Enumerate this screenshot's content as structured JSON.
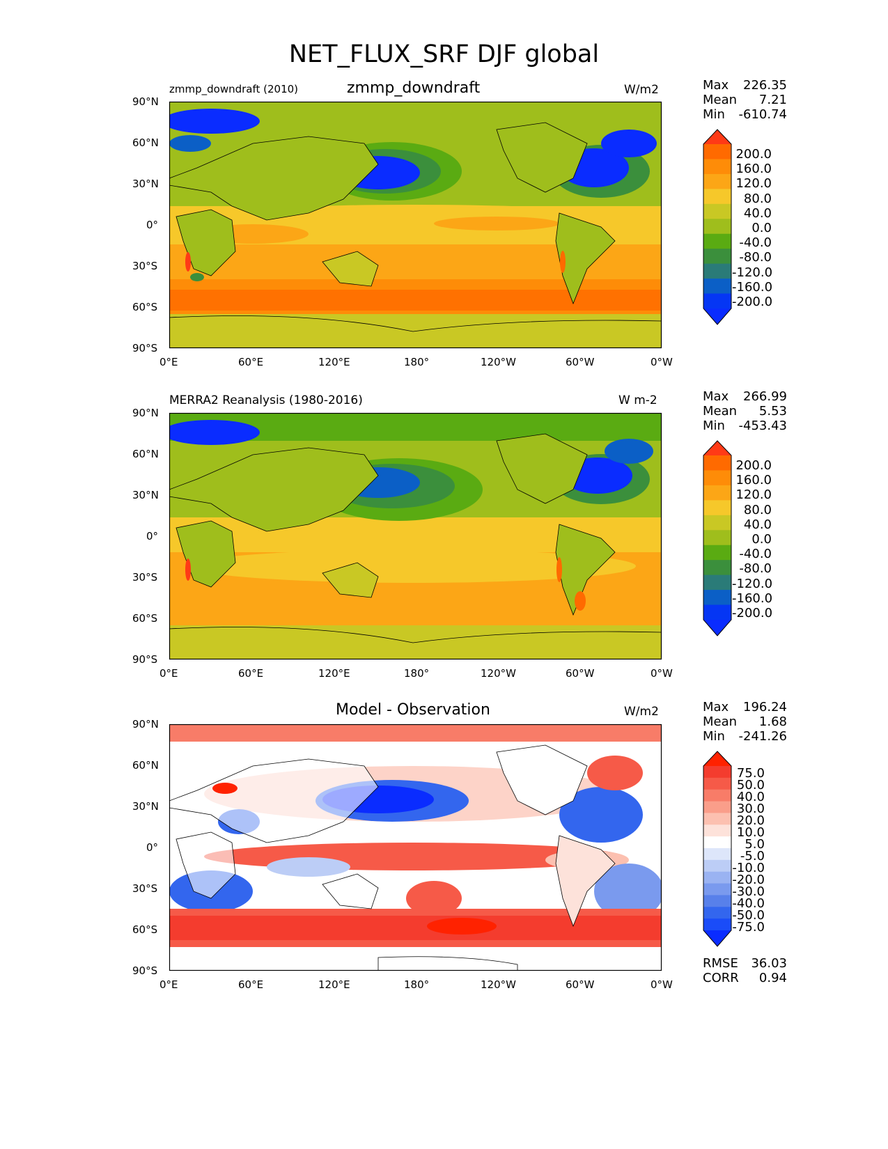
{
  "title": "NET_FLUX_SRF DJF global",
  "panels": [
    {
      "left_label": "zmmp_downdraft (2010)",
      "center_label": "zmmp_downdraft",
      "units": "W/m2",
      "stats": {
        "max_label": "Max",
        "max": "226.35",
        "mean_label": "Mean",
        "mean": "7.21",
        "min_label": "Min",
        "min": "-610.74"
      },
      "colorbar": {
        "labels": [
          "200.0",
          "160.0",
          "120.0",
          "80.0",
          "40.0",
          "0.0",
          "-40.0",
          "-80.0",
          "-120.0",
          "-160.0",
          "-200.0"
        ],
        "colors": [
          "#ff3a16",
          "#ff6a00",
          "#fe8c08",
          "#fca616",
          "#f6c82a",
          "#c9c824",
          "#9fbe1c",
          "#5aab12",
          "#3b8f3c",
          "#2a7b78",
          "#0b5fc6",
          "#0536f4",
          "#0a2cff"
        ]
      }
    },
    {
      "left_label": "MERRA2 Reanalysis (1980-2016)",
      "center_label": "",
      "units": "W m-2",
      "stats": {
        "max_label": "Max",
        "max": "266.99",
        "mean_label": "Mean",
        "mean": "5.53",
        "min_label": "Min",
        "min": "-453.43"
      },
      "colorbar": {
        "labels": [
          "200.0",
          "160.0",
          "120.0",
          "80.0",
          "40.0",
          "0.0",
          "-40.0",
          "-80.0",
          "-120.0",
          "-160.0",
          "-200.0"
        ],
        "colors": [
          "#ff3a16",
          "#ff6a00",
          "#fe8c08",
          "#fca616",
          "#f6c82a",
          "#c9c824",
          "#9fbe1c",
          "#5aab12",
          "#3b8f3c",
          "#2a7b78",
          "#0b5fc6",
          "#0536f4",
          "#0a2cff"
        ]
      }
    },
    {
      "left_label": "",
      "center_label": "Model - Observation",
      "units": "W/m2",
      "stats": {
        "max_label": "Max",
        "max": "196.24",
        "mean_label": "Mean",
        "mean": "1.68",
        "min_label": "Min",
        "min": "-241.26"
      },
      "colorbar": {
        "labels": [
          "75.0",
          "50.0",
          "40.0",
          "30.0",
          "20.0",
          "10.0",
          "5.0",
          "-5.0",
          "-10.0",
          "-20.0",
          "-30.0",
          "-40.0",
          "-50.0",
          "-75.0"
        ],
        "colors": [
          "#ff2200",
          "#f43c2e",
          "#f65a48",
          "#f87c68",
          "#fa9e8a",
          "#fcc0b0",
          "#fde2da",
          "#ffffff",
          "#dde6fa",
          "#bccdf6",
          "#9ab3f2",
          "#7a9aee",
          "#5880ea",
          "#3366ee",
          "#1a4cf8",
          "#0a2cff"
        ]
      },
      "rmse_label": "RMSE",
      "rmse": "36.03",
      "corr_label": "CORR",
      "corr": "0.94"
    }
  ],
  "axes": {
    "lat_ticks": [
      "90°N",
      "60°N",
      "30°N",
      "0°",
      "30°S",
      "60°S",
      "90°S"
    ],
    "lon_ticks": [
      "0°E",
      "60°E",
      "120°E",
      "180°",
      "120°W",
      "60°W",
      "0°W"
    ]
  }
}
